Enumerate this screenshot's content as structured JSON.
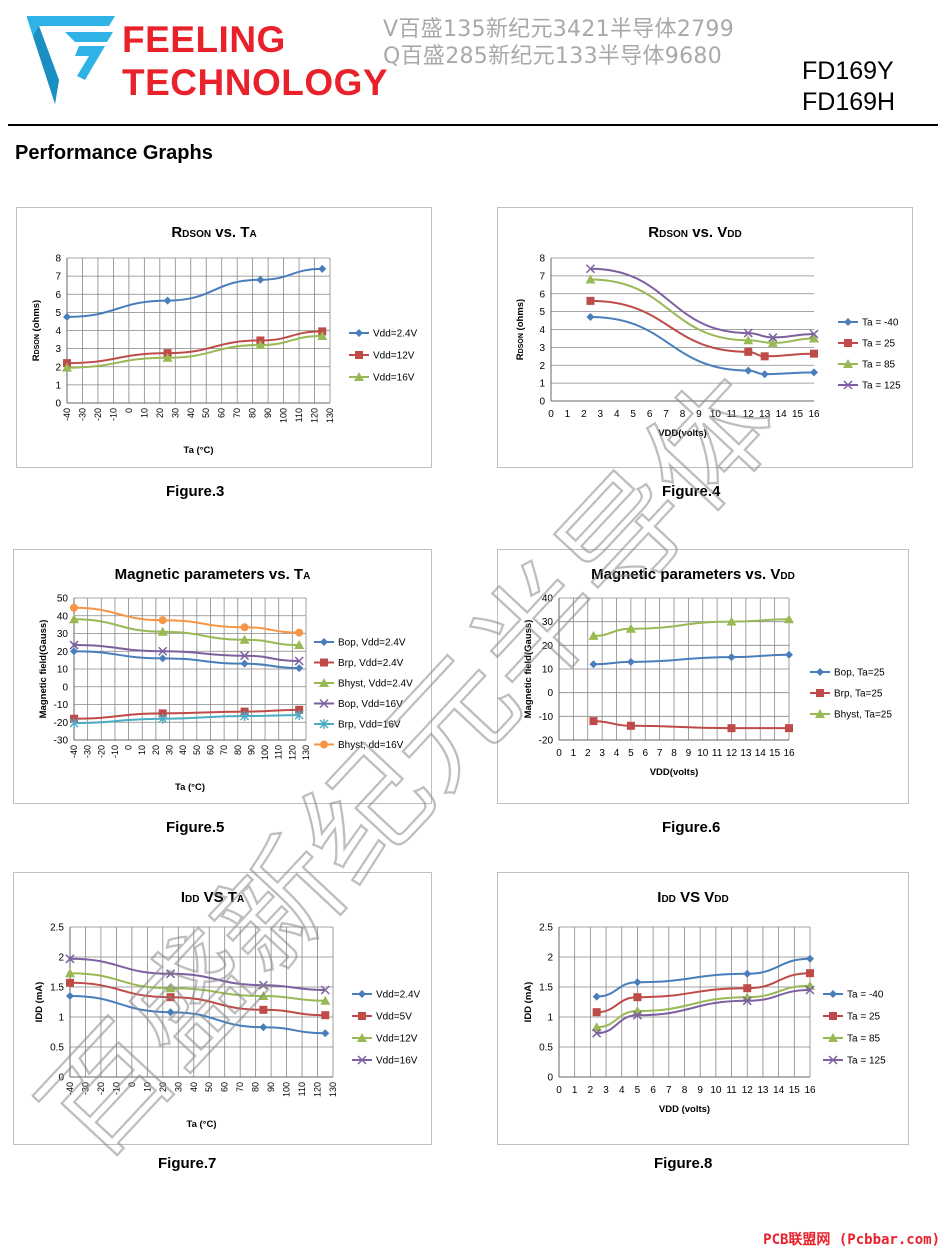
{
  "header": {
    "brand_line1": "FEELING",
    "brand_line2": "TECHNOLOGY",
    "watermark_line1": "V百盛135新纪元3421半导体2799",
    "watermark_line2": "Q百盛285新纪元133半导体9680",
    "part1": "FD169Y",
    "part2": "FD169H"
  },
  "section_title": "Performance Graphs",
  "diagonal_watermark": "百盛新纪元半导体",
  "footer": "PCB联盟网 (Pcbbar.com)",
  "colors": {
    "brand": "#e8212b",
    "s1": "#4a7ebb",
    "s2": "#be4b48",
    "s3": "#98b954",
    "s4": "#7d60a0",
    "s5": "#4bacc6",
    "s6": "#f79646"
  },
  "charts": [
    {
      "id": "figure-3",
      "caption": "Figure.3",
      "chart_data": {
        "type": "line",
        "title": [
          {
            "t": "R",
            "size": 15
          },
          {
            "t": "DSON",
            "size": 10
          },
          {
            "t": " vs. T",
            "size": 15
          },
          {
            "t": "A",
            "size": 10
          }
        ],
        "ylabel_main": "R",
        "ylabel_sub": "DSON",
        "ylabel_rest": " (ohms)",
        "xlabel": "Ta (°C)",
        "xlim": [
          -40,
          130
        ],
        "ylim": [
          0,
          8
        ],
        "xticks": [
          -40,
          -30,
          -20,
          -10,
          0,
          10,
          20,
          30,
          40,
          50,
          60,
          70,
          80,
          90,
          100,
          110,
          120,
          130
        ],
        "yticks": [
          0,
          1,
          2,
          3,
          4,
          5,
          6,
          7,
          8
        ],
        "xtick_rotate": true,
        "grid_x": true,
        "legend": "right",
        "series": [
          {
            "name": "Vdd=2.4V",
            "marker": "diamond",
            "color": "#4a7ebb",
            "x": [
              -40,
              25,
              85,
              125
            ],
            "y": [
              4.75,
              5.65,
              6.8,
              7.4
            ]
          },
          {
            "name": "Vdd=12V",
            "marker": "square",
            "color": "#be4b48",
            "x": [
              -40,
              25,
              85,
              125
            ],
            "y": [
              2.2,
              2.75,
              3.45,
              3.95
            ]
          },
          {
            "name": "Vdd=16V",
            "marker": "triangle",
            "color": "#98b954",
            "x": [
              -40,
              25,
              85,
              125
            ],
            "y": [
              1.95,
              2.5,
              3.2,
              3.7
            ]
          }
        ]
      }
    },
    {
      "id": "figure-4",
      "caption": "Figure.4",
      "chart_data": {
        "type": "line",
        "title": [
          {
            "t": "R",
            "size": 15
          },
          {
            "t": "DSON",
            "size": 10
          },
          {
            "t": " vs. V",
            "size": 15
          },
          {
            "t": "DD",
            "size": 10
          }
        ],
        "ylabel_main": "R",
        "ylabel_sub": "DSON",
        "ylabel_rest": " (ohms)",
        "xlabel": "VDD(volts)",
        "xlim": [
          0,
          16
        ],
        "ylim": [
          0,
          8
        ],
        "xticks": [
          0,
          1,
          2,
          3,
          4,
          5,
          6,
          7,
          8,
          9,
          10,
          11,
          12,
          13,
          14,
          15,
          16
        ],
        "yticks": [
          0,
          1,
          2,
          3,
          4,
          5,
          6,
          7,
          8
        ],
        "xtick_rotate": false,
        "grid_x": false,
        "legend": "right",
        "series": [
          {
            "name": "Ta = -40",
            "marker": "diamond",
            "color": "#4a7ebb",
            "x": [
              2.4,
              12,
              13,
              16
            ],
            "y": [
              4.7,
              1.7,
              1.5,
              1.6
            ]
          },
          {
            "name": "Ta = 25",
            "marker": "square",
            "color": "#be4b48",
            "x": [
              2.4,
              12,
              13,
              16
            ],
            "y": [
              5.6,
              2.75,
              2.5,
              2.65
            ]
          },
          {
            "name": "Ta = 85",
            "marker": "triangle",
            "color": "#98b954",
            "x": [
              2.4,
              12,
              13.5,
              16
            ],
            "y": [
              6.8,
              3.4,
              3.25,
              3.5
            ]
          },
          {
            "name": "Ta = 125",
            "marker": "x",
            "color": "#7d60a0",
            "x": [
              2.4,
              12,
              13.5,
              16
            ],
            "y": [
              7.4,
              3.8,
              3.55,
              3.75
            ]
          }
        ]
      }
    },
    {
      "id": "figure-5",
      "caption": "Figure.5",
      "chart_data": {
        "type": "line",
        "title": [
          {
            "t": "Magnetic parameters vs. T",
            "size": 15
          },
          {
            "t": "A",
            "size": 10
          }
        ],
        "ylabel_main": "Magnetic field(Gauss)",
        "ylabel_sub": "",
        "ylabel_rest": "",
        "xlabel": "Ta (°C)",
        "xlim": [
          -40,
          130
        ],
        "ylim": [
          -30,
          50
        ],
        "xticks": [
          -40,
          -30,
          -20,
          -10,
          0,
          10,
          20,
          30,
          40,
          50,
          60,
          70,
          80,
          90,
          100,
          110,
          120,
          130
        ],
        "yticks": [
          -30,
          -20,
          -10,
          0,
          10,
          20,
          30,
          40,
          50
        ],
        "xtick_rotate": true,
        "grid_x": true,
        "legend": "right",
        "series": [
          {
            "name": "Bop, Vdd=2.4V",
            "marker": "diamond",
            "color": "#4a7ebb",
            "x": [
              -40,
              25,
              85,
              125
            ],
            "y": [
              20,
              16,
              13,
              10.5
            ]
          },
          {
            "name": "Brp, Vdd=2.4V",
            "marker": "square",
            "color": "#be4b48",
            "x": [
              -40,
              25,
              85,
              125
            ],
            "y": [
              -18,
              -15,
              -14,
              -13
            ]
          },
          {
            "name": "Bhyst, Vdd=2.4V",
            "marker": "triangle",
            "color": "#98b954",
            "x": [
              -40,
              25,
              85,
              125
            ],
            "y": [
              38,
              31,
              26.5,
              23.5
            ]
          },
          {
            "name": "Bop, Vdd=16V",
            "marker": "x",
            "color": "#7d60a0",
            "x": [
              -40,
              25,
              85,
              125
            ],
            "y": [
              23.5,
              20,
              17.5,
              14.5
            ]
          },
          {
            "name": "Brp, Vdd=16V",
            "marker": "star",
            "color": "#4bacc6",
            "x": [
              -40,
              25,
              85,
              125
            ],
            "y": [
              -20.5,
              -18,
              -16.5,
              -16
            ]
          },
          {
            "name": "Bhyst, dd=16V",
            "marker": "circle",
            "color": "#f79646",
            "x": [
              -40,
              25,
              85,
              125
            ],
            "y": [
              44.5,
              37.5,
              33.5,
              30.5
            ]
          }
        ]
      }
    },
    {
      "id": "figure-6",
      "caption": "Figure.6",
      "chart_data": {
        "type": "line",
        "title": [
          {
            "t": "Magnetic parameters vs. V",
            "size": 15
          },
          {
            "t": "DD",
            "size": 10
          }
        ],
        "ylabel_main": "Magnetic field(Gauss)",
        "ylabel_sub": "",
        "ylabel_rest": "",
        "xlabel": "VDD(volts)",
        "xlim": [
          0,
          16
        ],
        "ylim": [
          -20,
          40
        ],
        "xticks": [
          0,
          1,
          2,
          3,
          4,
          5,
          6,
          7,
          8,
          9,
          10,
          11,
          12,
          13,
          14,
          15,
          16
        ],
        "yticks": [
          -20,
          -10,
          0,
          10,
          20,
          30,
          40
        ],
        "xtick_rotate": false,
        "grid_x": true,
        "legend": "right",
        "series": [
          {
            "name": "Bop, Ta=25",
            "marker": "diamond",
            "color": "#4a7ebb",
            "x": [
              2.4,
              5,
              12,
              16
            ],
            "y": [
              12,
              13,
              15,
              16
            ]
          },
          {
            "name": "Brp, Ta=25",
            "marker": "square",
            "color": "#be4b48",
            "x": [
              2.4,
              5,
              12,
              16
            ],
            "y": [
              -12,
              -14,
              -15,
              -15
            ]
          },
          {
            "name": "Bhyst, Ta=25",
            "marker": "triangle",
            "color": "#98b954",
            "x": [
              2.4,
              5,
              12,
              16
            ],
            "y": [
              24,
              27,
              30,
              31
            ]
          }
        ]
      }
    },
    {
      "id": "figure-7",
      "caption": "Figure.7",
      "chart_data": {
        "type": "line",
        "title": [
          {
            "t": "I",
            "size": 15
          },
          {
            "t": "DD",
            "size": 10
          },
          {
            "t": " VS T",
            "size": 15
          },
          {
            "t": "A",
            "size": 10
          }
        ],
        "ylabel_main": "IDD (mA)",
        "ylabel_sub": "",
        "ylabel_rest": "",
        "xlabel": "Ta (°C)",
        "xlim": [
          -40,
          130
        ],
        "ylim": [
          0,
          2.5
        ],
        "xticks": [
          -40,
          -30,
          -20,
          -10,
          0,
          10,
          20,
          30,
          40,
          50,
          60,
          70,
          80,
          90,
          100,
          110,
          120,
          130
        ],
        "yticks": [
          0,
          0.5,
          1,
          1.5,
          2,
          2.5
        ],
        "xtick_rotate": true,
        "grid_x": true,
        "legend": "right",
        "series": [
          {
            "name": "Vdd=2.4V",
            "marker": "diamond",
            "color": "#4a7ebb",
            "x": [
              -40,
              25,
              85,
              125
            ],
            "y": [
              1.35,
              1.08,
              0.83,
              0.73
            ]
          },
          {
            "name": "Vdd=5V",
            "marker": "square",
            "color": "#be4b48",
            "x": [
              -40,
              25,
              85,
              125
            ],
            "y": [
              1.57,
              1.33,
              1.12,
              1.03
            ]
          },
          {
            "name": "Vdd=12V",
            "marker": "triangle",
            "color": "#98b954",
            "x": [
              -40,
              25,
              85,
              125
            ],
            "y": [
              1.73,
              1.48,
              1.35,
              1.27
            ]
          },
          {
            "name": "Vdd=16V",
            "marker": "x",
            "color": "#7d60a0",
            "x": [
              -40,
              25,
              85,
              125
            ],
            "y": [
              1.97,
              1.72,
              1.53,
              1.45
            ]
          }
        ]
      }
    },
    {
      "id": "figure-8",
      "caption": "Figure.8",
      "chart_data": {
        "type": "line",
        "title": [
          {
            "t": "I",
            "size": 15
          },
          {
            "t": "DD",
            "size": 10
          },
          {
            "t": " VS V",
            "size": 15
          },
          {
            "t": "DD",
            "size": 10
          }
        ],
        "ylabel_main": "IDD (mA)",
        "ylabel_sub": "",
        "ylabel_rest": "",
        "xlabel": "VDD (volts)",
        "xlim": [
          0,
          16
        ],
        "ylim": [
          0,
          2.5
        ],
        "xticks": [
          0,
          1,
          2,
          3,
          4,
          5,
          6,
          7,
          8,
          9,
          10,
          11,
          12,
          13,
          14,
          15,
          16
        ],
        "yticks": [
          0,
          0.5,
          1,
          1.5,
          2,
          2.5
        ],
        "xtick_rotate": false,
        "grid_x": true,
        "legend": "right",
        "series": [
          {
            "name": "Ta = -40",
            "marker": "diamond",
            "color": "#4a7ebb",
            "x": [
              2.4,
              5,
              12,
              16
            ],
            "y": [
              1.34,
              1.58,
              1.72,
              1.97
            ]
          },
          {
            "name": "Ta = 25",
            "marker": "square",
            "color": "#be4b48",
            "x": [
              2.4,
              5,
              12,
              16
            ],
            "y": [
              1.08,
              1.33,
              1.48,
              1.73
            ]
          },
          {
            "name": "Ta = 85",
            "marker": "triangle",
            "color": "#98b954",
            "x": [
              2.4,
              5,
              12,
              16
            ],
            "y": [
              0.83,
              1.1,
              1.33,
              1.52
            ]
          },
          {
            "name": "Ta = 125",
            "marker": "x",
            "color": "#7d60a0",
            "x": [
              2.4,
              5,
              12,
              16
            ],
            "y": [
              0.73,
              1.03,
              1.27,
              1.45
            ]
          }
        ]
      }
    }
  ]
}
